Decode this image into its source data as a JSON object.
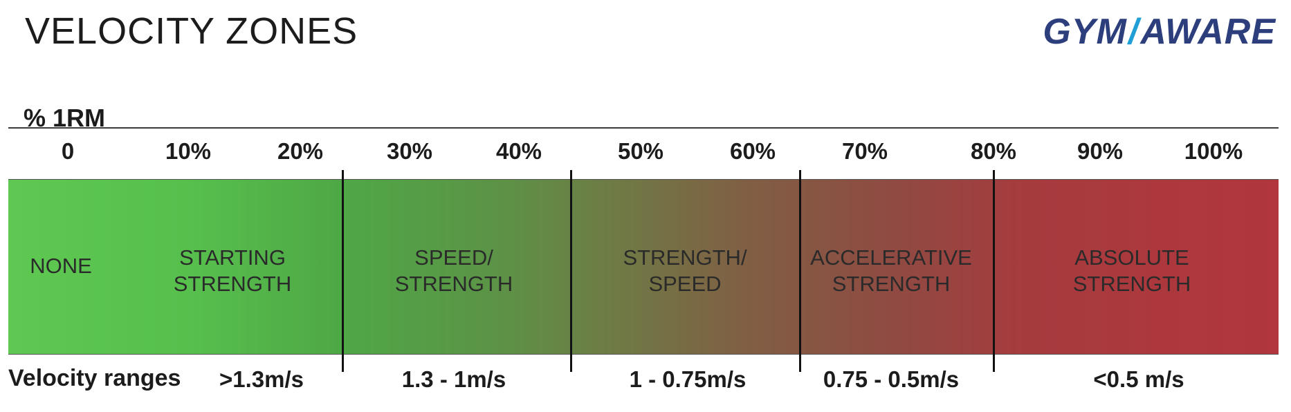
{
  "header": {
    "title": "VELOCITY ZONES",
    "logo_left": "GYM",
    "logo_slash": "/",
    "logo_right": "AWARE"
  },
  "axis": {
    "label": "% 1RM",
    "ticks": [
      "0",
      "10%",
      "20%",
      "30%",
      "40%",
      "50%",
      "60%",
      "70%",
      "80%",
      "90%",
      "100%"
    ]
  },
  "zones": [
    {
      "label": "NONE"
    },
    {
      "label": "STARTING\nSTRENGTH"
    },
    {
      "label": "SPEED/\nSTRENGTH"
    },
    {
      "label": "STRENGTH/\nSPEED"
    },
    {
      "label": "ACCELERATIVE\nSTRENGTH"
    },
    {
      "label": "ABSOLUTE\nSTRENGTH"
    }
  ],
  "velocity": {
    "title": "Velocity ranges",
    "ranges": [
      ">1.3m/s",
      "1.3 - 1m/s",
      "1 - 0.75m/s",
      "0.75 - 0.5m/s",
      "<0.5 m/s"
    ]
  },
  "colors": {
    "start_green": "#5ec852",
    "end_red": "#b1363d",
    "logo_blue": "#2d3e7d",
    "logo_accent": "#1f9fd6"
  }
}
